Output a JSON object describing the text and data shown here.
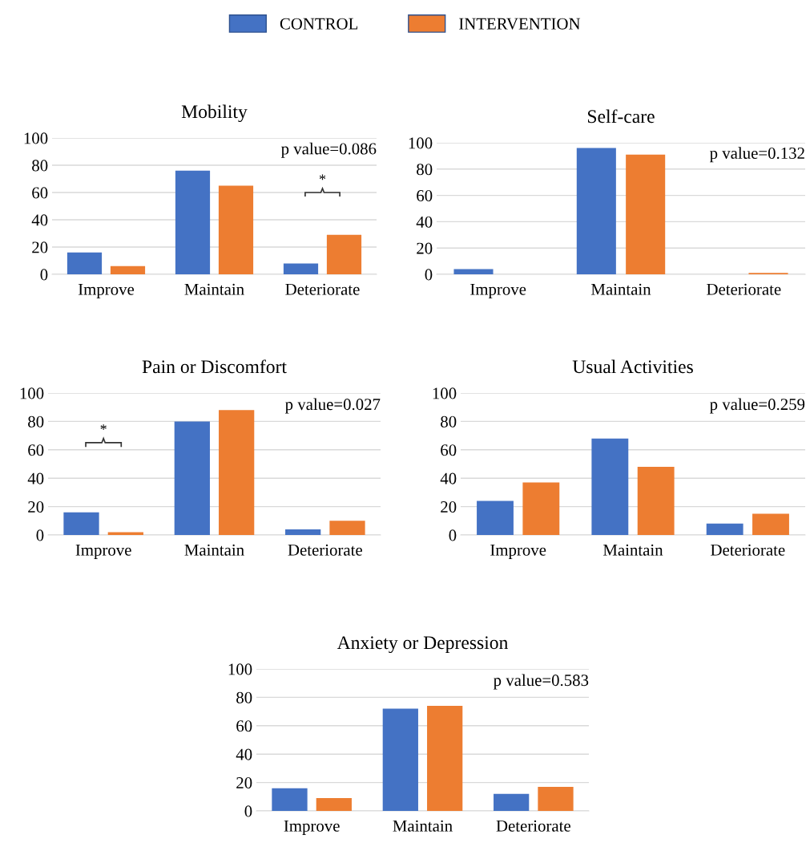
{
  "chart_data": [
    {
      "type": "bar",
      "title": "Mobility",
      "categories": [
        "Improve",
        "Maintain",
        "Deteriorate"
      ],
      "legend": "top",
      "grid": "y",
      "ylim": [
        0,
        100
      ],
      "yticks": [
        0,
        20,
        40,
        60,
        80,
        100
      ],
      "series": [
        {
          "name": "CONTROL",
          "color": "#4472c4",
          "values": [
            16,
            76,
            8
          ]
        },
        {
          "name": "INTERVENTION",
          "color": "#ed7d31",
          "values": [
            6,
            65,
            29
          ]
        }
      ],
      "annotations": [
        "p value=0.086",
        "*"
      ]
    },
    {
      "type": "bar",
      "title": "Self-care",
      "categories": [
        "Improve",
        "Maintain",
        "Deteriorate"
      ],
      "grid": "y",
      "ylim": [
        0,
        100
      ],
      "yticks": [
        0,
        20,
        40,
        60,
        80,
        100
      ],
      "series": [
        {
          "color": "#4472c4",
          "values": [
            4,
            96,
            0
          ]
        },
        {
          "color": "#ed7d31",
          "values": [
            0,
            91,
            1
          ]
        }
      ],
      "annotations": [
        "p value=0.132"
      ]
    },
    {
      "type": "bar",
      "title": "Pain or Discomfort",
      "categories": [
        "Improve",
        "Maintain",
        "Deteriorate"
      ],
      "grid": "y",
      "ylim": [
        0,
        100
      ],
      "yticks": [
        0,
        20,
        40,
        60,
        80,
        100
      ],
      "series": [
        {
          "color": "#4472c4",
          "values": [
            16,
            80,
            4
          ]
        },
        {
          "color": "#ed7d31",
          "values": [
            2,
            88,
            10
          ]
        }
      ],
      "annotations": [
        "p value=0.027",
        "*"
      ]
    },
    {
      "type": "bar",
      "title": "Usual Activities",
      "categories": [
        "Improve",
        "Maintain",
        "Deteriorate"
      ],
      "grid": "y",
      "ylim": [
        0,
        100
      ],
      "yticks": [
        0,
        20,
        40,
        60,
        80,
        100
      ],
      "series": [
        {
          "color": "#4472c4",
          "values": [
            24,
            68,
            8
          ]
        },
        {
          "color": "#ed7d31",
          "values": [
            37,
            48,
            15
          ]
        }
      ],
      "annotations": [
        "p value=0.259"
      ]
    },
    {
      "type": "bar",
      "title": "Anxiety or Depression",
      "categories": [
        "Improve",
        "Maintain",
        "Deteriorate"
      ],
      "grid": "y",
      "ylim": [
        0,
        100
      ],
      "yticks": [
        0,
        20,
        40,
        60,
        80,
        100
      ],
      "series": [
        {
          "color": "#4472c4",
          "values": [
            16,
            72,
            12
          ]
        },
        {
          "color": "#ed7d31",
          "values": [
            9,
            74,
            17
          ]
        }
      ],
      "annotations": [
        "p value=0.583"
      ]
    }
  ]
}
